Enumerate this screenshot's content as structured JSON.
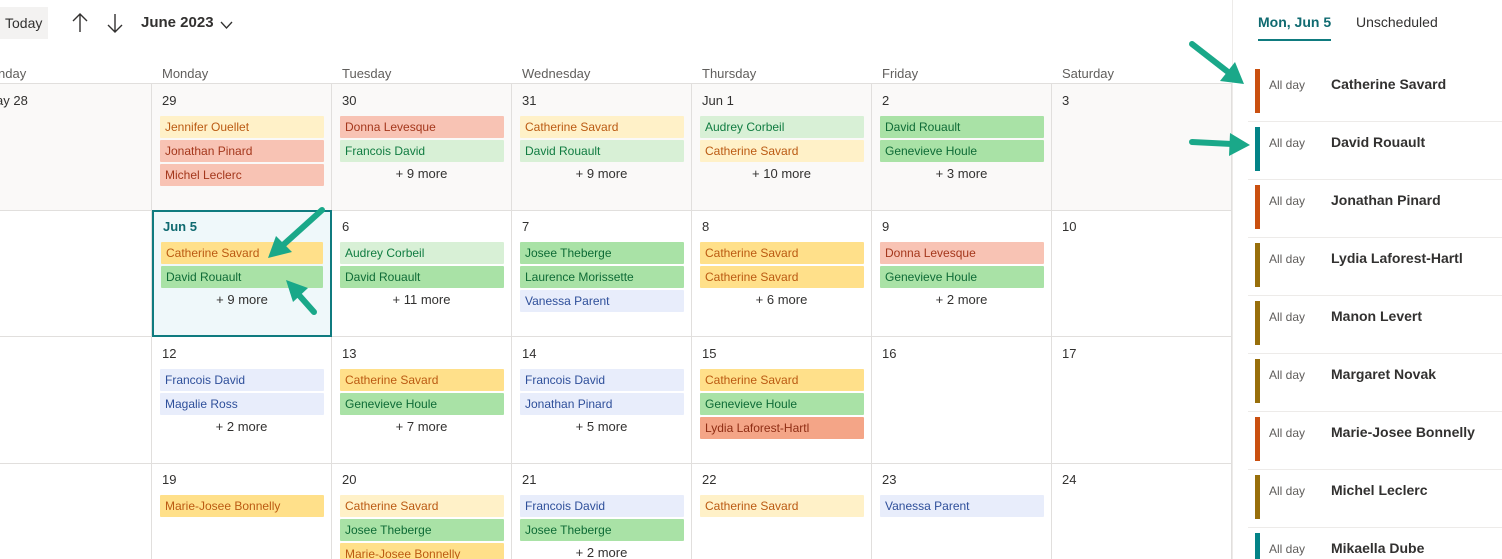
{
  "toolbar": {
    "today_label": "Today",
    "month_label": "June 2023",
    "prev_icon": "arrow-up-icon",
    "next_icon": "arrow-down-icon",
    "month_dropdown_icon": "chevron-down-icon"
  },
  "day_headers": [
    "nday",
    "Monday",
    "Tuesday",
    "Wednesday",
    "Thursday",
    "Friday",
    "Saturday"
  ],
  "weeks": [
    {
      "days": [
        {
          "date": "ay 28",
          "past": true,
          "events": []
        },
        {
          "date": "29",
          "past": true,
          "events": [
            {
              "title": "Jennifer Ouellet",
              "color": "yellow-l"
            },
            {
              "title": "Jonathan Pinard",
              "color": "salmon-l"
            },
            {
              "title": "Michel Leclerc",
              "color": "salmon-l"
            }
          ],
          "more": ""
        },
        {
          "date": "30",
          "past": true,
          "events": [
            {
              "title": "Donna Levesque",
              "color": "salmon-l"
            },
            {
              "title": "Francois David",
              "color": "green-l"
            }
          ],
          "more": "+ 9 more"
        },
        {
          "date": "31",
          "past": true,
          "events": [
            {
              "title": "Catherine Savard",
              "color": "yellow-l"
            },
            {
              "title": "David Rouault",
              "color": "green-l"
            }
          ],
          "more": "+ 9 more"
        },
        {
          "date": "Jun 1",
          "past": true,
          "events": [
            {
              "title": "Audrey Corbeil",
              "color": "green-l"
            },
            {
              "title": "Catherine Savard",
              "color": "yellow-l"
            }
          ],
          "more": "+ 10 more"
        },
        {
          "date": "2",
          "past": true,
          "events": [
            {
              "title": "David Rouault",
              "color": "green"
            },
            {
              "title": "Genevieve Houle",
              "color": "green"
            }
          ],
          "more": "+ 3 more"
        },
        {
          "date": "3",
          "past": true,
          "events": [],
          "more": ""
        }
      ]
    },
    {
      "days": [
        {
          "date": "",
          "past": false,
          "events": [],
          "more": ""
        },
        {
          "date": "Jun 5",
          "selected": true,
          "events": [
            {
              "title": "Catherine Savard",
              "color": "yellow"
            },
            {
              "title": "David Rouault",
              "color": "green"
            }
          ],
          "more": "+ 9 more"
        },
        {
          "date": "6",
          "events": [
            {
              "title": "Audrey Corbeil",
              "color": "green-l"
            },
            {
              "title": "David Rouault",
              "color": "green"
            }
          ],
          "more": "+ 11 more"
        },
        {
          "date": "7",
          "events": [
            {
              "title": "Josee Theberge",
              "color": "green"
            },
            {
              "title": "Laurence Morissette",
              "color": "green"
            },
            {
              "title": "Vanessa Parent",
              "color": "blue-l"
            }
          ],
          "more": ""
        },
        {
          "date": "8",
          "events": [
            {
              "title": "Catherine Savard",
              "color": "yellow"
            },
            {
              "title": "Catherine Savard",
              "color": "yellow"
            }
          ],
          "more": "+ 6 more"
        },
        {
          "date": "9",
          "events": [
            {
              "title": "Donna Levesque",
              "color": "salmon-l"
            },
            {
              "title": "Genevieve Houle",
              "color": "green"
            }
          ],
          "more": "+ 2 more"
        },
        {
          "date": "10",
          "events": [],
          "more": ""
        }
      ]
    },
    {
      "days": [
        {
          "date": "",
          "events": [],
          "more": ""
        },
        {
          "date": "12",
          "events": [
            {
              "title": "Francois David",
              "color": "blue-l"
            },
            {
              "title": "Magalie Ross",
              "color": "blue-l"
            }
          ],
          "more": "+ 2 more"
        },
        {
          "date": "13",
          "events": [
            {
              "title": "Catherine Savard",
              "color": "yellow"
            },
            {
              "title": "Genevieve Houle",
              "color": "green"
            }
          ],
          "more": "+ 7 more"
        },
        {
          "date": "14",
          "events": [
            {
              "title": "Francois David",
              "color": "blue-l"
            },
            {
              "title": "Jonathan Pinard",
              "color": "blue-l"
            }
          ],
          "more": "+ 5 more"
        },
        {
          "date": "15",
          "events": [
            {
              "title": "Catherine Savard",
              "color": "yellow"
            },
            {
              "title": "Genevieve Houle",
              "color": "green"
            },
            {
              "title": "Lydia Laforest-Hartl",
              "color": "salmon"
            }
          ],
          "more": ""
        },
        {
          "date": "16",
          "events": [],
          "more": ""
        },
        {
          "date": "17",
          "events": [],
          "more": ""
        }
      ]
    },
    {
      "days": [
        {
          "date": "",
          "events": [],
          "more": ""
        },
        {
          "date": "19",
          "events": [
            {
              "title": "Marie-Josee Bonnelly",
              "color": "yellow"
            }
          ],
          "more": ""
        },
        {
          "date": "20",
          "events": [
            {
              "title": "Catherine Savard",
              "color": "yellow-l"
            },
            {
              "title": "Josee Theberge",
              "color": "green"
            },
            {
              "title": "Marie-Josee Bonnelly",
              "color": "yellow"
            }
          ],
          "more": ""
        },
        {
          "date": "21",
          "events": [
            {
              "title": "Francois David",
              "color": "blue-l"
            },
            {
              "title": "Josee Theberge",
              "color": "green"
            }
          ],
          "more": "+ 2 more"
        },
        {
          "date": "22",
          "events": [
            {
              "title": "Catherine Savard",
              "color": "yellow-l"
            }
          ],
          "more": ""
        },
        {
          "date": "23",
          "events": [
            {
              "title": "Vanessa Parent",
              "color": "blue-l"
            }
          ],
          "more": ""
        },
        {
          "date": "24",
          "events": [],
          "more": ""
        }
      ]
    }
  ],
  "panel": {
    "tabs": [
      {
        "label": "Mon, Jun 5",
        "active": true
      },
      {
        "label": "Unscheduled",
        "active": false
      }
    ],
    "agenda": [
      {
        "time": "All day",
        "name": "Catherine Savard",
        "bar": "#ca5010"
      },
      {
        "time": "All day",
        "name": "David Rouault",
        "bar": "#038387"
      },
      {
        "time": "All day",
        "name": "Jonathan Pinard",
        "bar": "#ca5010"
      },
      {
        "time": "All day",
        "name": "Lydia Laforest-Hartl",
        "bar": "#986f0b"
      },
      {
        "time": "All day",
        "name": "Manon Levert",
        "bar": "#986f0b"
      },
      {
        "time": "All day",
        "name": "Margaret Novak",
        "bar": "#986f0b"
      },
      {
        "time": "All day",
        "name": "Marie-Josee Bonnelly",
        "bar": "#ca5010"
      },
      {
        "time": "All day",
        "name": "Michel Leclerc",
        "bar": "#986f0b"
      },
      {
        "time": "All day",
        "name": "Mikaella Dube",
        "bar": "#038387"
      }
    ]
  },
  "annotation_color": "#1aa889"
}
